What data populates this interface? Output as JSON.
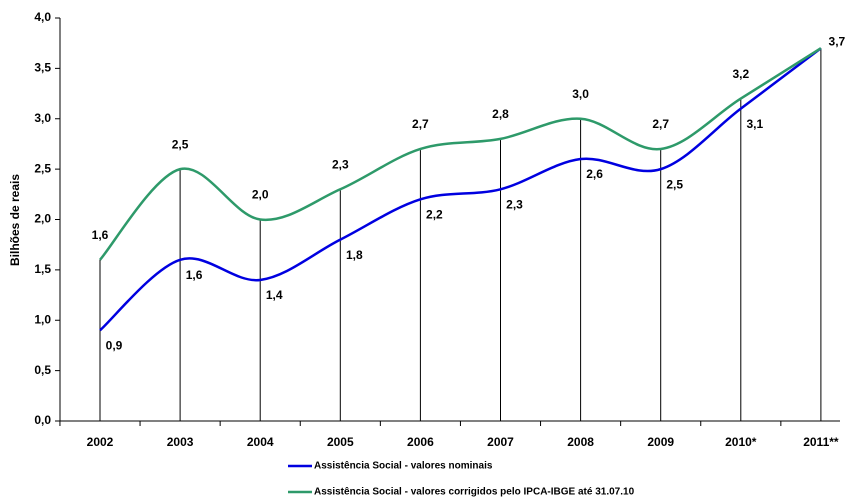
{
  "chart_data": {
    "type": "line",
    "y_label": "Bilhões de reais",
    "categories": [
      "2002",
      "2003",
      "2004",
      "2005",
      "2006",
      "2007",
      "2008",
      "2009",
      "2010*",
      "2011**"
    ],
    "series": [
      {
        "name": "Assistência Social - valores nominais",
        "color": "#0000e0",
        "values": [
          0.9,
          1.6,
          1.4,
          1.8,
          2.2,
          2.3,
          2.6,
          2.5,
          3.1,
          3.7
        ],
        "value_labels": [
          "0,9",
          "1,6",
          "1,4",
          "1,8",
          "2,2",
          "2,3",
          "2,6",
          "2,5",
          "3,1",
          null
        ]
      },
      {
        "name": "Assistência Social - valores corrigidos pelo IPCA-IBGE até 31.07.10",
        "color": "#2e9a6a",
        "values": [
          1.6,
          2.5,
          2.0,
          2.3,
          2.7,
          2.8,
          3.0,
          2.7,
          3.2,
          3.7
        ],
        "value_labels": [
          "1,6",
          "2,5",
          "2,0",
          "2,3",
          "2,7",
          "2,8",
          "3,0",
          "2,7",
          "3,2",
          "3,7"
        ]
      }
    ],
    "ylim": [
      0,
      4
    ],
    "yticks": [
      {
        "value": 0,
        "label": "0,0"
      },
      {
        "value": 0.5,
        "label": "0,5"
      },
      {
        "value": 1,
        "label": "1,0"
      },
      {
        "value": 1.5,
        "label": "1,5"
      },
      {
        "value": 2,
        "label": "2,0"
      },
      {
        "value": 2.5,
        "label": "2,5"
      },
      {
        "value": 3,
        "label": "3,0"
      },
      {
        "value": 3.5,
        "label": "3,5"
      },
      {
        "value": 4,
        "label": "4,0"
      }
    ],
    "grid": false,
    "legend": "bottom"
  }
}
